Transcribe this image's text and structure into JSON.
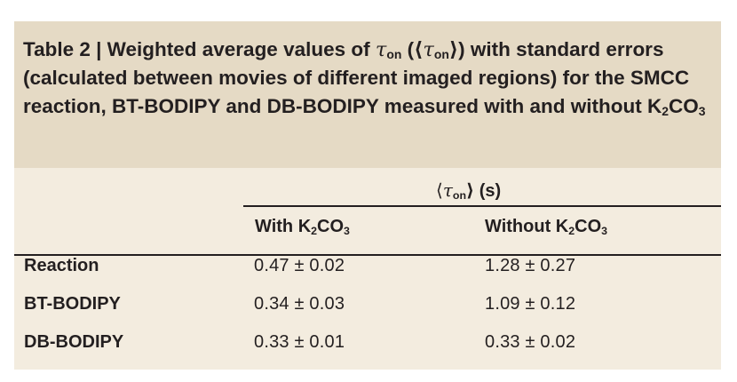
{
  "caption": {
    "label": "Table 2 | ",
    "text_1": "Weighted average values of ",
    "symbol": "τ",
    "subscript": "on",
    "text_2": " (⟨",
    "text_3": "⟩) with standard errors (calculated between movies of different imaged regions) for the SMCC reaction, BT-BODIPY and DB-BODIPY measured with and without K",
    "k_sub_1": "2",
    "co": "CO",
    "k_sub_2": "3"
  },
  "header": {
    "group_open": "⟨",
    "group_symbol": "τ",
    "group_sub": "on",
    "group_close": "⟩ (s)",
    "col_with_prefix": "With K",
    "col_without_prefix": "Without K",
    "sub_2": "2",
    "co": "CO",
    "sub_3": "3"
  },
  "rows": [
    {
      "label": "Reaction",
      "with": "0.47 ± 0.02",
      "without": "1.28 ± 0.27"
    },
    {
      "label": "BT-BODIPY",
      "with": "0.34 ± 0.03",
      "without": "1.09 ± 0.12"
    },
    {
      "label": "DB-BODIPY",
      "with": "0.33 ± 0.01",
      "without": "0.33 ± 0.02"
    }
  ]
}
